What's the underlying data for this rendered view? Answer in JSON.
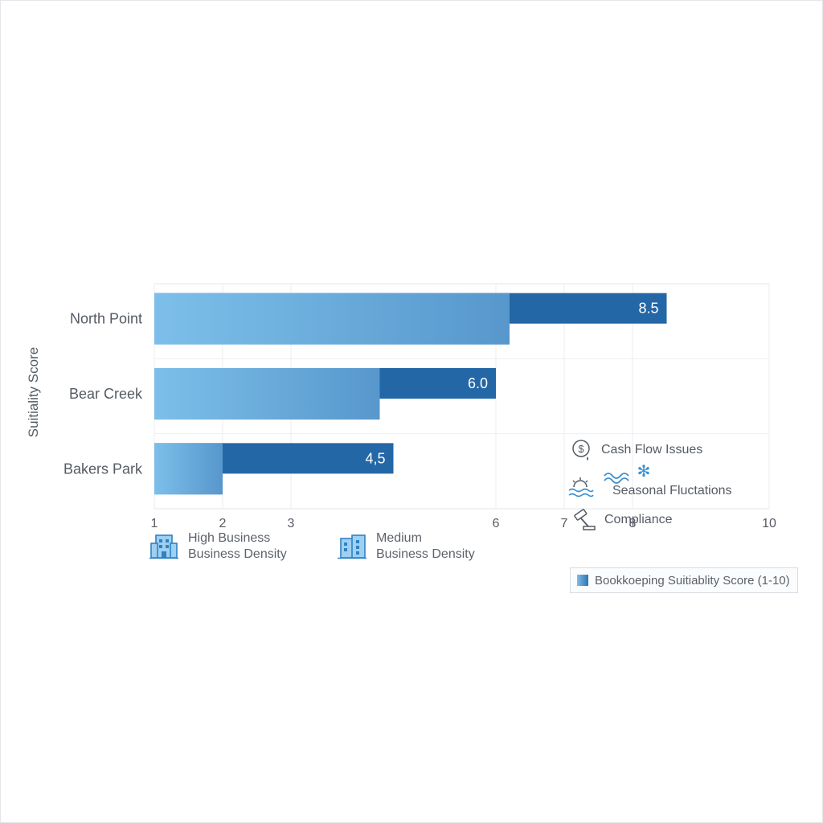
{
  "chart_data": {
    "type": "bar",
    "orientation": "horizontal",
    "categories": [
      "North Point",
      "Bear Creek",
      "Bakers Park"
    ],
    "series": [
      {
        "values": [
          6.2,
          4.3,
          2.0
        ],
        "color": "#6aade0"
      },
      {
        "values": [
          8.5,
          6.0,
          4.5
        ],
        "color": "#2467a6"
      }
    ],
    "value_labels": [
      "8.5",
      "6.0",
      "4,5"
    ],
    "ylabel": "Suitiality Score",
    "x_ticks": [
      {
        "label": "1",
        "value": 1
      },
      {
        "label": "2",
        "value": 2
      },
      {
        "label": "3",
        "value": 3
      },
      {
        "label": "6",
        "value": 6
      },
      {
        "label": "7",
        "value": 7
      },
      {
        "label": "8",
        "value": 8
      },
      {
        "label": "10",
        "value": 10
      }
    ],
    "xlim": [
      1,
      10
    ],
    "grid": true
  },
  "legend": {
    "high": {
      "line1": "High Business",
      "line2": "Business Density",
      "icon": "building-icon"
    },
    "medium": {
      "line1": "Medium",
      "line2": "Business Density",
      "icon": "building-icon"
    }
  },
  "risks": [
    {
      "label": "Cash Flow Issues",
      "icon": "money-icon"
    },
    {
      "label": "Seasonal Fluctations",
      "icon": "sun-wave-icon"
    },
    {
      "label": "Compliance",
      "icon": "gavel-icon"
    }
  ],
  "score_legend": "Bookkoeping Suitiablity Score (1-10)",
  "colors": {
    "light_bar": "#6aade0",
    "dark_bar": "#2467a6",
    "icon_blue": "#3a8fd0"
  }
}
